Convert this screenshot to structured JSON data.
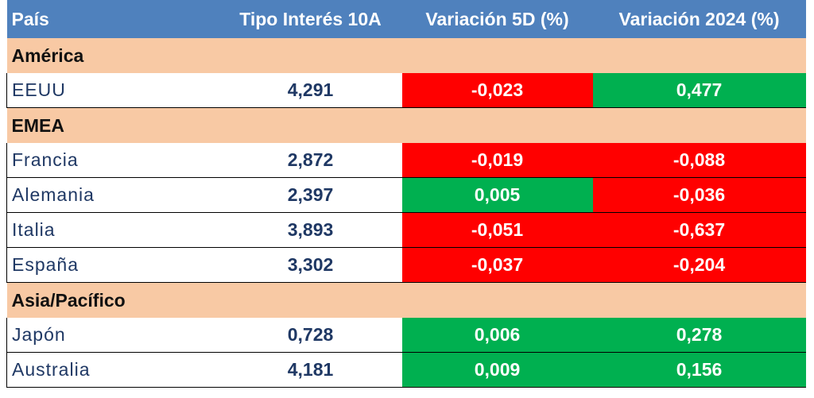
{
  "table": {
    "header": [
      "País",
      "Tipo Interés 10A",
      "Variación 5D (%)",
      "Variación 2024 (%)"
    ],
    "groups": [
      {
        "name": "América",
        "rows": [
          [
            "EEUU",
            "4,291",
            "-0,023",
            "0,477"
          ]
        ]
      },
      {
        "name": "EMEA",
        "rows": [
          [
            "Francia",
            "2,872",
            "-0,019",
            "-0,088"
          ],
          [
            "Alemania",
            "2,397",
            "0,005",
            "-0,036"
          ],
          [
            "Italia",
            "3,893",
            "-0,051",
            "-0,637"
          ],
          [
            "España",
            "3,302",
            "-0,037",
            "-0,204"
          ]
        ]
      },
      {
        "name": "Asia/Pacífico",
        "rows": [
          [
            "Japón",
            "0,728",
            "0,006",
            "0,278"
          ],
          [
            "Australia",
            "4,181",
            "0,009",
            "0,156"
          ]
        ]
      }
    ]
  }
}
